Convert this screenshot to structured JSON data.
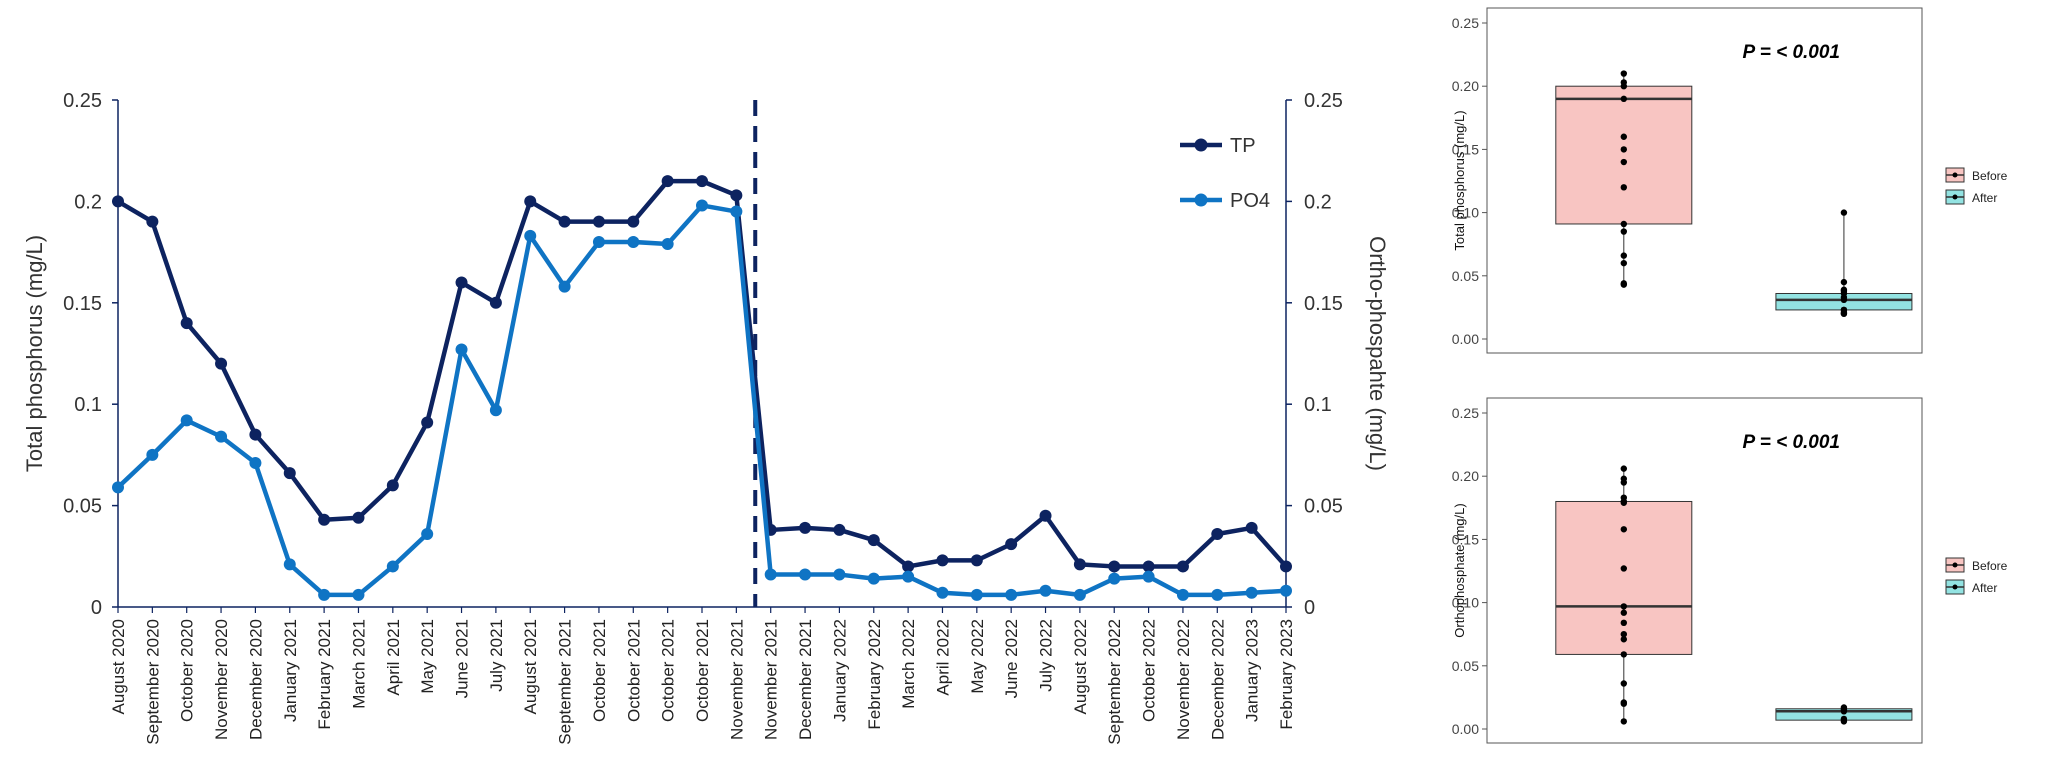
{
  "chart_data": [
    {
      "type": "line",
      "ylabel_left": "Total phosphorus (mg/L)",
      "ylabel_right": "Ortho-phospahte (mg/L)",
      "ylim": [
        0,
        0.25
      ],
      "yticks": [
        "0",
        "0.05",
        "0.1",
        "0.15",
        "0.2",
        "0.25"
      ],
      "ytick_values": [
        0,
        0.05,
        0.1,
        0.15,
        0.2,
        0.25
      ],
      "divider_after_index": 18,
      "categories": [
        "August 2020",
        "September 2020",
        "October 2020",
        "November 2020",
        "December 2020",
        "January 2021",
        "February 2021",
        "March 2021",
        "April 2021",
        "May 2021",
        "June 2021",
        "July 2021",
        "August 2021",
        "September 2021",
        "October 2021",
        "October 2021",
        "October 2021",
        "October 2021",
        "November 2021",
        "November 2021",
        "December 2021",
        "January 2022",
        "February 2022",
        "March 2022",
        "April 2022",
        "May 2022",
        "June 2022",
        "July 2022",
        "August 2022",
        "September 2022",
        "October 2022",
        "November 2022",
        "December 2022",
        "January 2023",
        "February 2023"
      ],
      "series": [
        {
          "name": "TP",
          "color": "#0d2360",
          "values": [
            0.2,
            0.19,
            0.14,
            0.12,
            0.085,
            0.066,
            0.043,
            0.044,
            0.06,
            0.091,
            0.16,
            0.15,
            0.2,
            0.19,
            0.19,
            0.19,
            0.21,
            0.21,
            0.203,
            0.038,
            0.039,
            0.038,
            0.033,
            0.02,
            0.023,
            0.023,
            0.031,
            0.045,
            0.021,
            0.02,
            0.02,
            0.02,
            0.036,
            0.039,
            0.02
          ]
        },
        {
          "name": "PO4",
          "color": "#0f74c4",
          "values": [
            0.059,
            0.075,
            0.092,
            0.084,
            0.071,
            0.021,
            0.006,
            0.006,
            0.02,
            0.036,
            0.127,
            0.097,
            0.183,
            0.158,
            0.18,
            0.18,
            0.179,
            0.198,
            0.195,
            0.016,
            0.016,
            0.016,
            0.014,
            0.015,
            0.007,
            0.006,
            0.006,
            0.008,
            0.006,
            0.014,
            0.015,
            0.006,
            0.006,
            0.007,
            0.008
          ]
        }
      ]
    },
    {
      "type": "box",
      "ylabel": "Total phosphorus (mg/L)",
      "annotation": "P = < 0.001",
      "ylim": [
        0,
        0.25
      ],
      "yticks": [
        "0.00",
        "0.05",
        "0.10",
        "0.15",
        "0.20",
        "0.25"
      ],
      "ytick_values": [
        0,
        0.05,
        0.1,
        0.15,
        0.2,
        0.25
      ],
      "legend": [
        "Before",
        "After"
      ],
      "groups": [
        {
          "name": "Before",
          "color": "#f8c5c2",
          "q1": 0.091,
          "median": 0.19,
          "q3": 0.2,
          "min": 0.043,
          "max": 0.21,
          "points": [
            0.21,
            0.203,
            0.2,
            0.19,
            0.16,
            0.15,
            0.14,
            0.12,
            0.091,
            0.085,
            0.066,
            0.06,
            0.044,
            0.043
          ]
        },
        {
          "name": "After",
          "color": "#93e3e2",
          "q1": 0.023,
          "median": 0.031,
          "q3": 0.036,
          "min": 0.02,
          "max": 0.1,
          "points": [
            0.1,
            0.045,
            0.039,
            0.038,
            0.036,
            0.033,
            0.031,
            0.023,
            0.023,
            0.021,
            0.02,
            0.02
          ]
        }
      ]
    },
    {
      "type": "box",
      "ylabel": "Orthophosphate (mg/L)",
      "annotation": "P = < 0.001",
      "ylim": [
        0,
        0.25
      ],
      "yticks": [
        "0.00",
        "0.05",
        "0.10",
        "0.15",
        "0.20",
        "0.25"
      ],
      "ytick_values": [
        0,
        0.05,
        0.1,
        0.15,
        0.2,
        0.25
      ],
      "legend": [
        "Before",
        "After"
      ],
      "groups": [
        {
          "name": "Before",
          "color": "#f8c5c2",
          "q1": 0.059,
          "median": 0.097,
          "q3": 0.18,
          "min": 0.006,
          "max": 0.206,
          "points": [
            0.206,
            0.198,
            0.195,
            0.183,
            0.18,
            0.179,
            0.158,
            0.127,
            0.097,
            0.092,
            0.084,
            0.075,
            0.071,
            0.059,
            0.036,
            0.021,
            0.02,
            0.006
          ]
        },
        {
          "name": "After",
          "color": "#93e3e2",
          "q1": 0.007,
          "median": 0.014,
          "q3": 0.016,
          "min": 0.006,
          "max": 0.017,
          "points": [
            0.017,
            0.016,
            0.015,
            0.014,
            0.008,
            0.007,
            0.006
          ]
        }
      ]
    }
  ]
}
